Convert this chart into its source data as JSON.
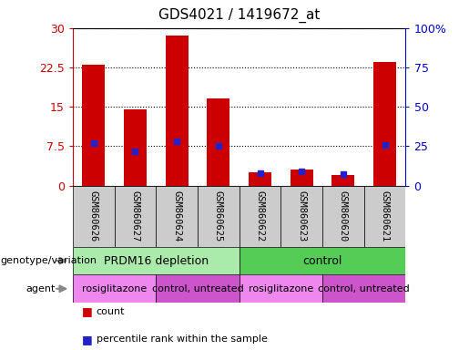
{
  "title": "GDS4021 / 1419672_at",
  "samples": [
    "GSM860626",
    "GSM860627",
    "GSM860624",
    "GSM860625",
    "GSM860622",
    "GSM860623",
    "GSM860620",
    "GSM860621"
  ],
  "counts": [
    23.0,
    14.5,
    28.5,
    16.5,
    2.5,
    3.0,
    2.0,
    23.5
  ],
  "percentile_ranks": [
    27,
    22,
    28,
    25,
    8,
    9,
    7,
    26
  ],
  "ylim_left": [
    0,
    30
  ],
  "ylim_right": [
    0,
    100
  ],
  "yticks_left": [
    0,
    7.5,
    15,
    22.5,
    30
  ],
  "yticks_right": [
    0,
    25,
    50,
    75,
    100
  ],
  "ytick_labels_left": [
    "0",
    "7.5",
    "15",
    "22.5",
    "30"
  ],
  "ytick_labels_right": [
    "0",
    "25",
    "50",
    "75",
    "100%"
  ],
  "bar_color": "#cc0000",
  "percentile_color": "#2222cc",
  "bar_width": 0.55,
  "genotype_groups": [
    {
      "label": "PRDM16 depletion",
      "start": 0,
      "end": 4,
      "color": "#aaeaaa"
    },
    {
      "label": "control",
      "start": 4,
      "end": 8,
      "color": "#55cc55"
    }
  ],
  "agent_groups": [
    {
      "label": "rosiglitazone",
      "start": 0,
      "end": 2,
      "color": "#ee88ee"
    },
    {
      "label": "control, untreated",
      "start": 2,
      "end": 4,
      "color": "#cc55cc"
    },
    {
      "label": "rosiglitazone",
      "start": 4,
      "end": 6,
      "color": "#ee88ee"
    },
    {
      "label": "control, untreated",
      "start": 6,
      "end": 8,
      "color": "#cc55cc"
    }
  ],
  "legend_count_color": "#cc0000",
  "legend_percentile_color": "#2222cc",
  "bg_color": "#ffffff",
  "plot_bg_color": "#ffffff",
  "grid_color": "#000000",
  "left_axis_color": "#cc0000",
  "right_axis_color": "#0000cc"
}
